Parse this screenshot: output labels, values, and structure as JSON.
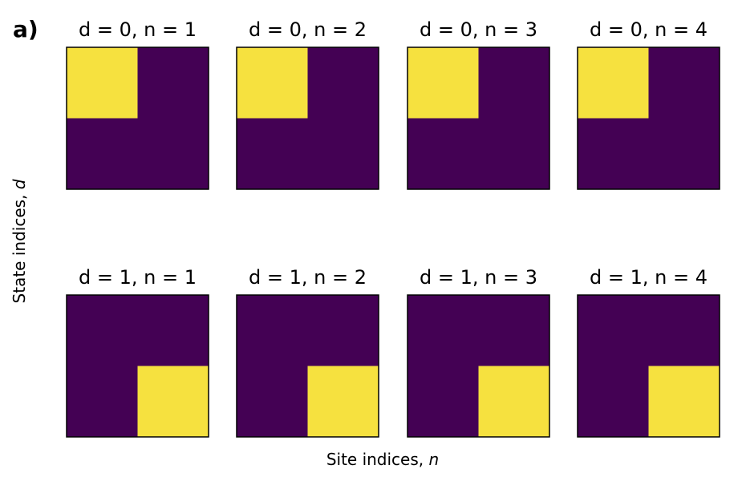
{
  "panel_label": "a)",
  "chart_data": {
    "type": "heatmap",
    "xlabel": "Site indices, n",
    "ylabel": "State indices, d",
    "xlabel_parts": {
      "text": "Site indices, ",
      "var": "n"
    },
    "ylabel_parts": {
      "text": "State indices, ",
      "var": "d"
    },
    "grid": false,
    "colormap": "viridis",
    "colors": {
      "low": "#440154",
      "high": "#f6e13f"
    },
    "panels": [
      {
        "title": "d = 0, n = 1",
        "d": 0,
        "n": 1,
        "matrix": [
          [
            1,
            0
          ],
          [
            0,
            0
          ]
        ]
      },
      {
        "title": "d = 0, n = 2",
        "d": 0,
        "n": 2,
        "matrix": [
          [
            1,
            0
          ],
          [
            0,
            0
          ]
        ]
      },
      {
        "title": "d = 0, n = 3",
        "d": 0,
        "n": 3,
        "matrix": [
          [
            1,
            0
          ],
          [
            0,
            0
          ]
        ]
      },
      {
        "title": "d = 0, n = 4",
        "d": 0,
        "n": 4,
        "matrix": [
          [
            1,
            0
          ],
          [
            0,
            0
          ]
        ]
      },
      {
        "title": "d = 1, n = 1",
        "d": 1,
        "n": 1,
        "matrix": [
          [
            0,
            0
          ],
          [
            0,
            1
          ]
        ]
      },
      {
        "title": "d = 1, n = 2",
        "d": 1,
        "n": 2,
        "matrix": [
          [
            0,
            0
          ],
          [
            0,
            1
          ]
        ]
      },
      {
        "title": "d = 1, n = 3",
        "d": 1,
        "n": 3,
        "matrix": [
          [
            0,
            0
          ],
          [
            0,
            1
          ]
        ]
      },
      {
        "title": "d = 1, n = 4",
        "d": 1,
        "n": 4,
        "matrix": [
          [
            0,
            0
          ],
          [
            0,
            1
          ]
        ]
      }
    ]
  }
}
